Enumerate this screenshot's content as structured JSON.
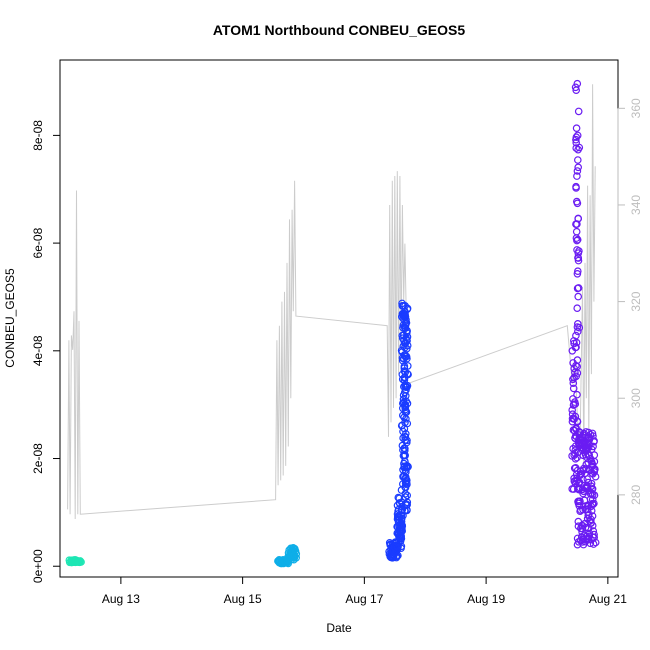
{
  "chart_data": {
    "type": "scatter",
    "title": "ATOM1 Northbound CONBEU_GEOS5",
    "xlabel": "Date",
    "ylabel": "CONBEU_GEOS5",
    "x_ticks": [
      "Aug 13",
      "Aug 15",
      "Aug 17",
      "Aug 19",
      "Aug 21"
    ],
    "y_ticks": [
      "0e+00",
      "2e-08",
      "4e-08",
      "6e-08",
      "8e-08"
    ],
    "y_right_ticks": [
      "280",
      "300",
      "320",
      "340",
      "360"
    ],
    "xlim": [
      "2016-08-12 00:00",
      "2016-08-21 04:00"
    ],
    "ylim": [
      -2e-09,
      9.4e-08
    ],
    "y2lim": [
      263,
      370
    ],
    "grid": false,
    "colors": {
      "series_1": "#1ee6b4",
      "series_2": "#0eaee8",
      "series_3": "#1a3cff",
      "series_4": "#6a1cf2",
      "secondary_line": "#cccccc"
    },
    "series": [
      {
        "segments": [
          {
            "x_start": "2016-08-12 04:00",
            "x_end": "2016-08-12 08:00",
            "y_min": 7e-10,
            "y_max": 1.2e-09,
            "n": 40
          }
        ]
      },
      {
        "segments": [
          {
            "x_start": "2016-08-15 14:00",
            "x_end": "2016-08-15 18:00",
            "y_min": 5e-10,
            "y_max": 1.2e-09,
            "n": 40
          },
          {
            "x_start": "2016-08-15 18:00",
            "x_end": "2016-08-15 21:00",
            "y_min": 1.2e-09,
            "y_max": 3.5e-09,
            "n": 40
          }
        ]
      },
      {
        "segments": [
          {
            "x_start": "2016-08-17 10:00",
            "x_end": "2016-08-17 13:00",
            "y_min": 1.5e-09,
            "y_max": 4.5e-09,
            "n": 50
          },
          {
            "x_start": "2016-08-17 13:00",
            "x_end": "2016-08-17 15:00",
            "y_min": 3e-09,
            "y_max": 1.3e-08,
            "n": 60
          },
          {
            "x_start": "2016-08-17 15:00",
            "x_end": "2016-08-17 17:00",
            "y_min": 1e-08,
            "y_max": 5e-08,
            "n": 160
          }
        ]
      },
      {
        "segments": [
          {
            "x_start": "2016-08-20 10:00",
            "x_end": "2016-08-20 12:00",
            "y_min": 1.4e-08,
            "y_max": 4.2e-08,
            "n": 60
          },
          {
            "x_start": "2016-08-20 11:30",
            "x_end": "2016-08-20 12:30",
            "y_min": 4.2e-08,
            "y_max": 9.1e-08,
            "n": 45
          },
          {
            "x_start": "2016-08-20 12:00",
            "x_end": "2016-08-20 19:00",
            "y_min": 4e-09,
            "y_max": 2.5e-08,
            "n": 180
          }
        ]
      }
    ],
    "secondary_series": {
      "y_axis": "right",
      "points": [
        [
          "2016-08-12 03:00",
          277
        ],
        [
          "2016-08-12 03:30",
          312
        ],
        [
          "2016-08-12 04:00",
          276
        ],
        [
          "2016-08-12 04:30",
          313
        ],
        [
          "2016-08-12 05:00",
          310
        ],
        [
          "2016-08-12 05:30",
          318
        ],
        [
          "2016-08-12 06:00",
          275
        ],
        [
          "2016-08-12 06:30",
          343
        ],
        [
          "2016-08-12 07:00",
          276
        ],
        [
          "2016-08-12 07:30",
          316
        ],
        [
          "2016-08-12 08:00",
          276
        ],
        [
          "2016-08-15 13:00",
          279
        ],
        [
          "2016-08-15 13:30",
          312
        ],
        [
          "2016-08-15 14:00",
          282
        ],
        [
          "2016-08-15 14:30",
          315
        ],
        [
          "2016-08-15 15:00",
          283
        ],
        [
          "2016-08-15 15:30",
          320
        ],
        [
          "2016-08-15 16:00",
          284
        ],
        [
          "2016-08-15 16:30",
          322
        ],
        [
          "2016-08-15 17:00",
          286
        ],
        [
          "2016-08-15 17:30",
          328
        ],
        [
          "2016-08-15 18:00",
          290
        ],
        [
          "2016-08-15 18:30",
          337
        ],
        [
          "2016-08-15 19:00",
          300
        ],
        [
          "2016-08-15 19:30",
          339
        ],
        [
          "2016-08-15 20:00",
          318
        ],
        [
          "2016-08-15 20:30",
          345
        ],
        [
          "2016-08-15 21:00",
          317
        ],
        [
          "2016-08-17 09:00",
          315
        ],
        [
          "2016-08-17 09:30",
          292
        ],
        [
          "2016-08-17 10:00",
          340
        ],
        [
          "2016-08-17 10:30",
          295
        ],
        [
          "2016-08-17 11:00",
          345
        ],
        [
          "2016-08-17 11:30",
          298
        ],
        [
          "2016-08-17 12:00",
          346
        ],
        [
          "2016-08-17 12:30",
          300
        ],
        [
          "2016-08-17 13:00",
          347
        ],
        [
          "2016-08-17 13:30",
          305
        ],
        [
          "2016-08-17 14:00",
          346
        ],
        [
          "2016-08-17 14:30",
          310
        ],
        [
          "2016-08-17 15:00",
          340
        ],
        [
          "2016-08-17 15:30",
          320
        ],
        [
          "2016-08-17 16:00",
          332
        ],
        [
          "2016-08-17 16:30",
          318
        ],
        [
          "2016-08-17 17:00",
          303
        ],
        [
          "2016-08-20 08:00",
          315
        ],
        [
          "2016-08-20 10:00",
          303
        ],
        [
          "2016-08-20 11:00",
          308
        ],
        [
          "2016-08-20 12:00",
          296
        ],
        [
          "2016-08-20 13:00",
          290
        ],
        [
          "2016-08-20 14:00",
          323
        ],
        [
          "2016-08-20 14:30",
          285
        ],
        [
          "2016-08-20 15:00",
          328
        ],
        [
          "2016-08-20 15:30",
          300
        ],
        [
          "2016-08-20 16:00",
          344
        ],
        [
          "2016-08-20 16:30",
          290
        ],
        [
          "2016-08-20 17:00",
          342
        ],
        [
          "2016-08-20 17:30",
          305
        ],
        [
          "2016-08-20 18:00",
          365
        ],
        [
          "2016-08-20 18:30",
          320
        ],
        [
          "2016-08-20 19:00",
          348
        ]
      ]
    }
  }
}
